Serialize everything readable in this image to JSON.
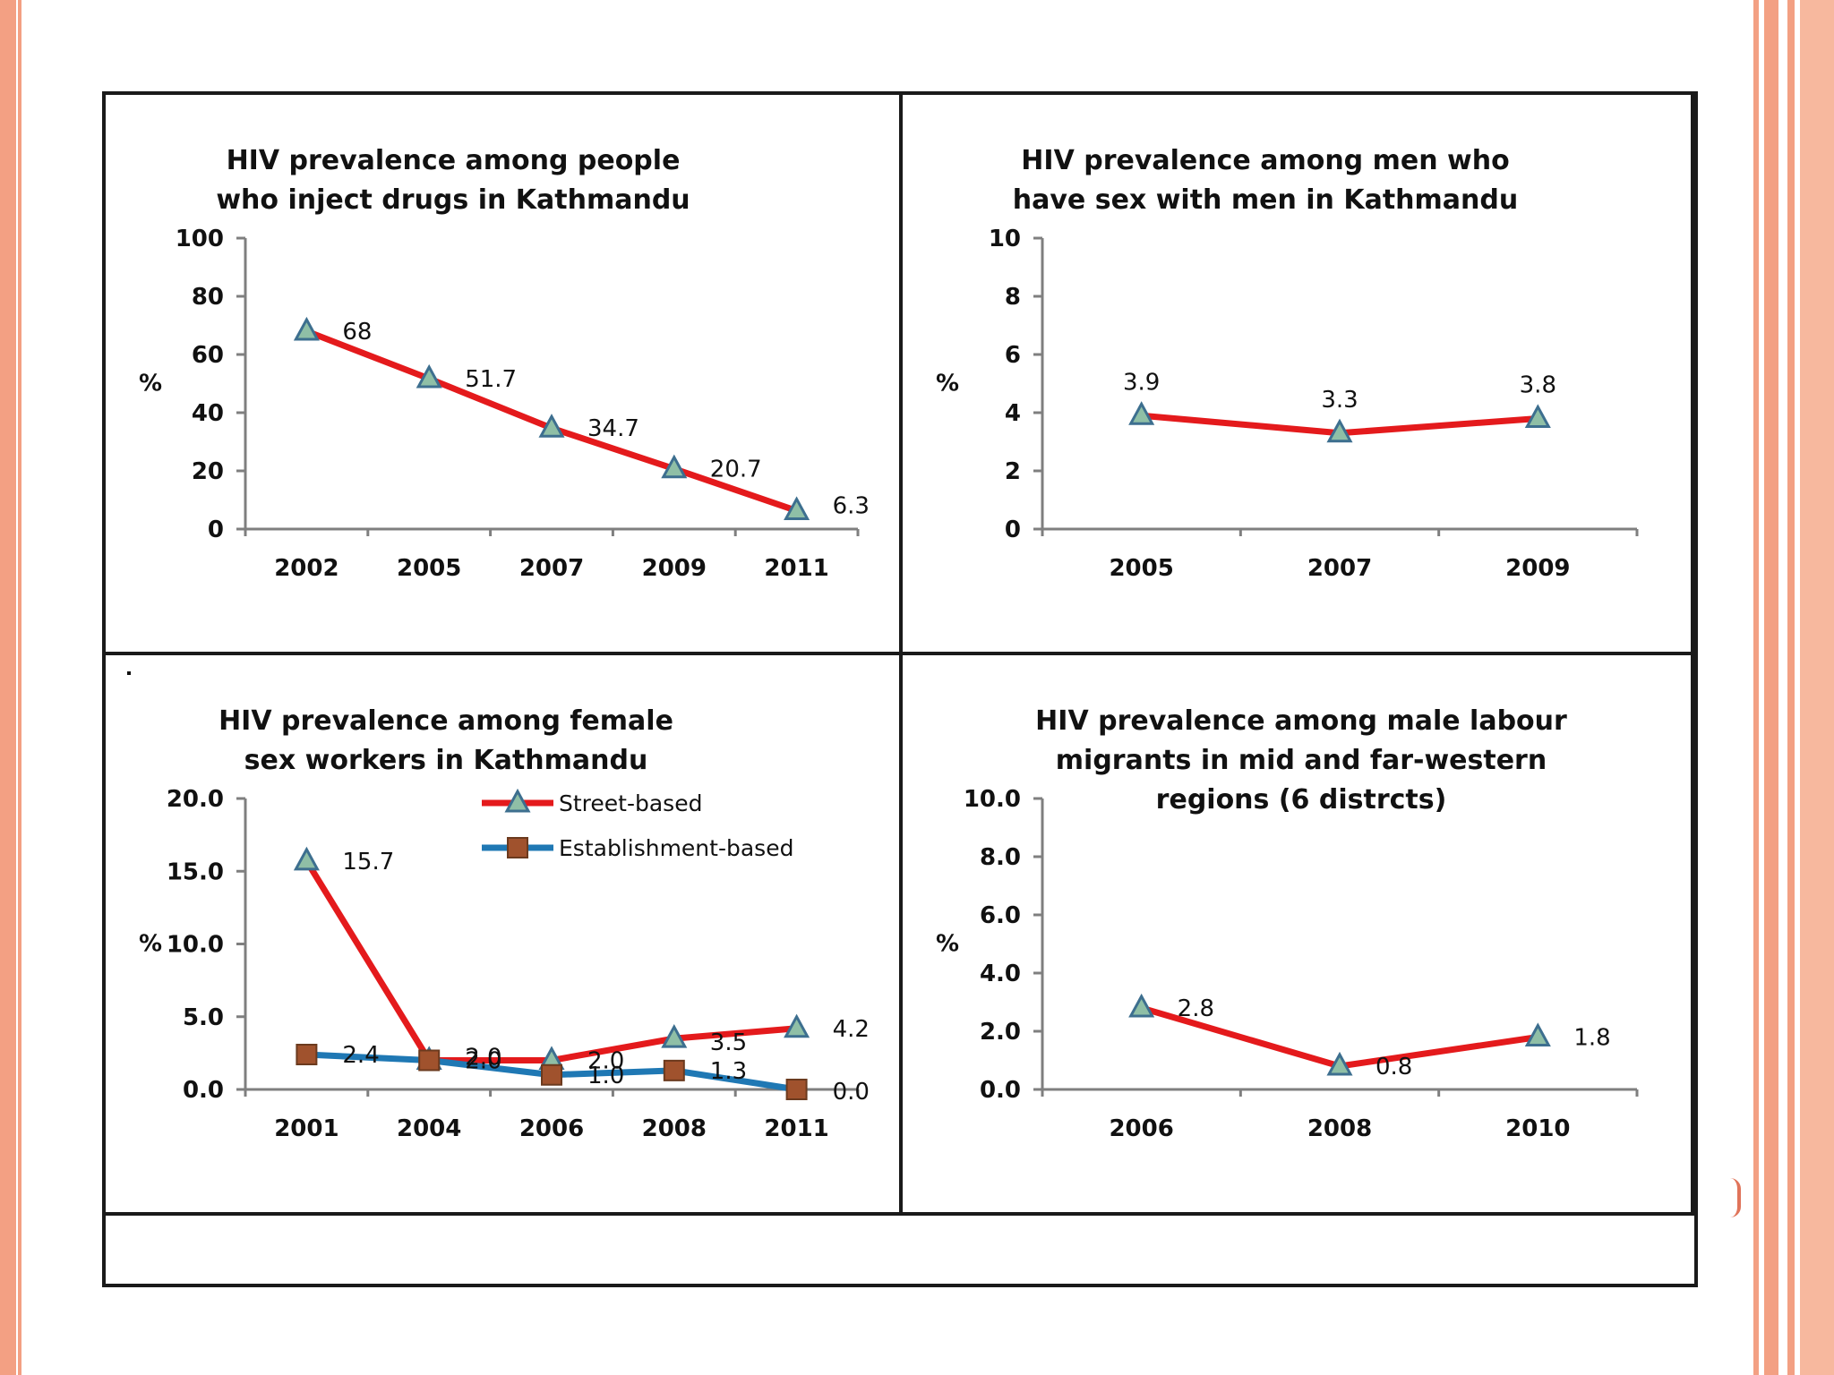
{
  "theme": {
    "border_color": "#f08a6c",
    "line_color": "#e41a1c",
    "line2_color": "#1f78b4",
    "marker_fill": "#8fbfa6",
    "marker_stroke": "#3d6f8f",
    "square_fill": "#a0522d"
  },
  "chart_data": [
    {
      "type": "line",
      "title": "HIV prevalence among people who inject drugs in Kathmandu",
      "ylabel": "%",
      "categories": [
        "2002",
        "2005",
        "2007",
        "2009",
        "2011"
      ],
      "ylim": [
        0,
        100
      ],
      "yticks": [
        "0",
        "20",
        "40",
        "60",
        "80",
        "100"
      ],
      "series": [
        {
          "values": [
            68,
            51.7,
            34.7,
            20.7,
            6.3
          ],
          "labels": [
            "68",
            "51.7",
            "34.7",
            "20.7",
            "6.3"
          ]
        }
      ]
    },
    {
      "type": "line",
      "title": "HIV prevalence among men who have sex with men in Kathmandu",
      "ylabel": "%",
      "categories": [
        "2005",
        "2007",
        "2009"
      ],
      "ylim": [
        0,
        10
      ],
      "yticks": [
        "0",
        "2",
        "4",
        "6",
        "8",
        "10"
      ],
      "series": [
        {
          "values": [
            3.9,
            3.3,
            3.8
          ],
          "labels": [
            "3.9",
            "3.3",
            "3.8"
          ]
        }
      ]
    },
    {
      "type": "line",
      "title": "HIV prevalence among female sex workers in Kathmandu",
      "ylabel": "%",
      "categories": [
        "2001",
        "2004",
        "2006",
        "2008",
        "2011"
      ],
      "ylim": [
        0,
        20
      ],
      "yticks": [
        "0.0",
        "5.0",
        "10.0",
        "15.0",
        "20.0"
      ],
      "legend": "top-right",
      "series": [
        {
          "name": "Street-based",
          "values": [
            15.7,
            2.0,
            2.0,
            3.5,
            4.2
          ],
          "labels": [
            "15.7",
            "2.0",
            "2.0",
            "3.5",
            "4.2"
          ]
        },
        {
          "name": "Establishment-based",
          "values": [
            2.4,
            2.0,
            1.0,
            1.3,
            0.0
          ],
          "labels": [
            "2.4",
            "2.0",
            "1.0",
            "1.3",
            "0.0"
          ]
        }
      ]
    },
    {
      "type": "line",
      "title": "HIV prevalence among male labour migrants in mid and far-western regions (6 distrcts)",
      "ylabel": "%",
      "categories": [
        "2006",
        "2008",
        "2010"
      ],
      "ylim": [
        0,
        10
      ],
      "yticks": [
        "0.0",
        "2.0",
        "4.0",
        "6.0",
        "8.0",
        "10.0"
      ],
      "series": [
        {
          "values": [
            2.8,
            0.8,
            1.8
          ],
          "labels": [
            "2.8",
            "0.8",
            "1.8"
          ]
        }
      ]
    }
  ],
  "extra": {
    "dot_mark": ".",
    "curl_mark": ")"
  }
}
